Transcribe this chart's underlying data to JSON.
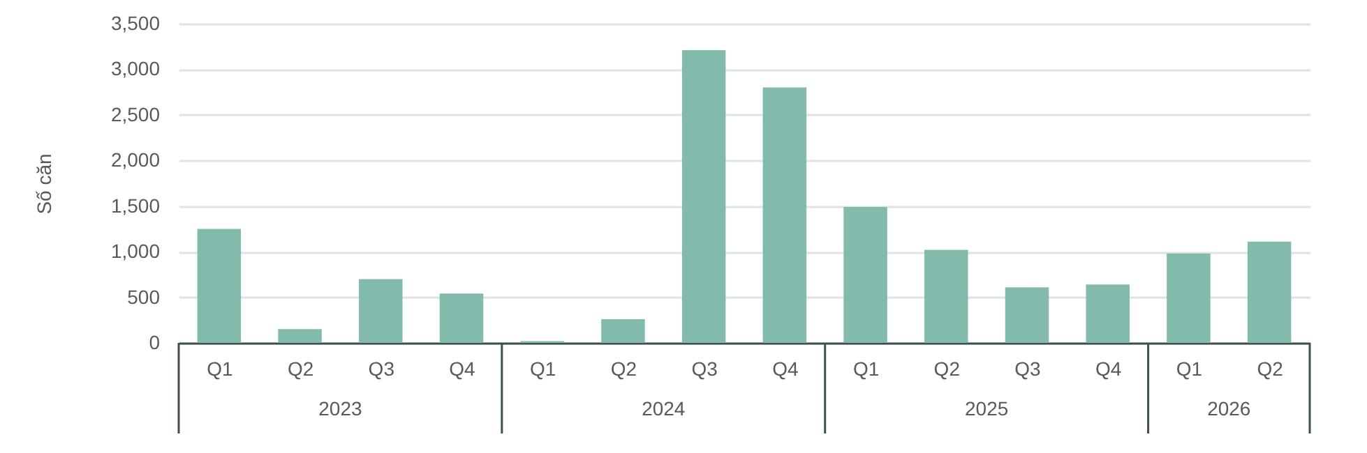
{
  "chart_data": {
    "type": "bar",
    "ylabel": "Số căn",
    "categories": [
      "Q1",
      "Q2",
      "Q3",
      "Q4",
      "Q1",
      "Q2",
      "Q3",
      "Q4",
      "Q1",
      "Q2",
      "Q3",
      "Q4",
      "Q1",
      "Q2"
    ],
    "values": [
      1250,
      150,
      700,
      540,
      20,
      260,
      3210,
      2800,
      1490,
      1020,
      610,
      640,
      980,
      1110
    ],
    "color": "#82bbab",
    "ylim": [
      0,
      3500
    ],
    "yticks": [
      0,
      500,
      {
        "value": 1000,
        "label": "1,000"
      },
      {
        "value": 1500,
        "label": "1,500"
      },
      {
        "value": 2000,
        "label": "2,000"
      },
      {
        "value": 2500,
        "label": "2,500"
      },
      {
        "value": 3000,
        "label": "3,000"
      },
      {
        "value": 3500,
        "label": "3,500"
      }
    ],
    "grid": "y",
    "annotations": [
      "2023",
      "2024",
      "2025",
      "2026"
    ]
  }
}
